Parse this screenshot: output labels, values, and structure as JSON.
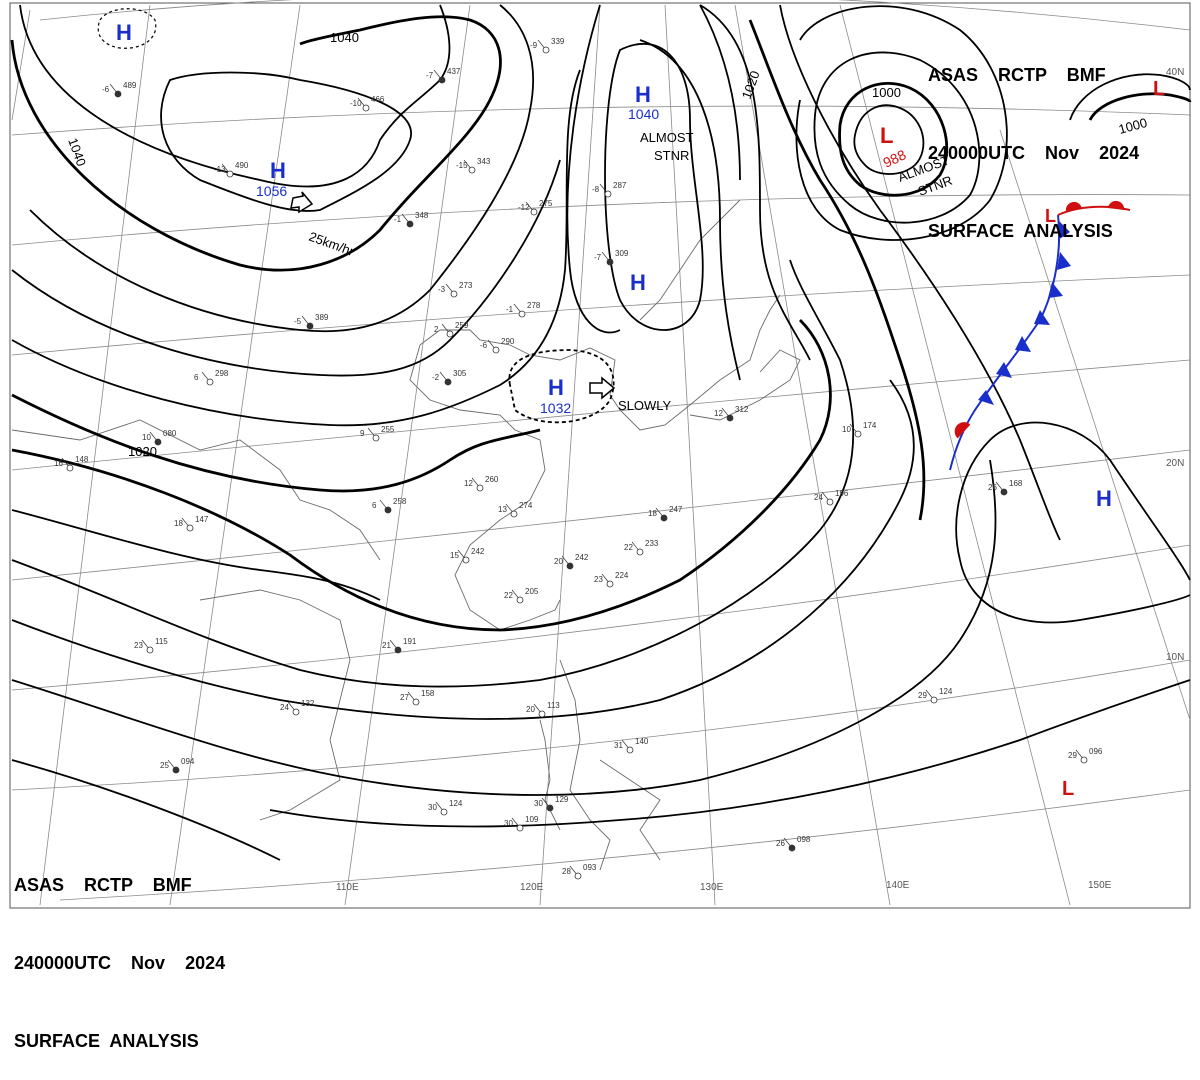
{
  "header_top": {
    "line1": "ASAS    RCTP    BMF",
    "line2": "240000UTC    Nov    2024",
    "line3": "SURFACE  ANALYSIS"
  },
  "header_bottom": {
    "line1": "ASAS    RCTP    BMF",
    "line2": "240000UTC    Nov    2024",
    "line3": "SURFACE  ANALYSIS"
  },
  "longitudes": [
    "110E",
    "120E",
    "130E",
    "140E",
    "150E"
  ],
  "latitudes": [
    "40N",
    "20N",
    "10N"
  ],
  "isobar_labels": [
    "1040",
    "1040",
    "1020",
    "1020",
    "1000",
    "1000"
  ],
  "pressure_centers": [
    {
      "type": "H",
      "value": "",
      "color": "#1a2ecc"
    },
    {
      "type": "H",
      "value": "1056",
      "color": "#1a2ecc"
    },
    {
      "type": "H",
      "value": "1040",
      "color": "#1a2ecc"
    },
    {
      "type": "H",
      "value": "",
      "color": "#1a2ecc"
    },
    {
      "type": "H",
      "value": "1032",
      "color": "#1a2ecc"
    },
    {
      "type": "H",
      "value": "",
      "color": "#1a2ecc"
    },
    {
      "type": "L",
      "value": "988",
      "color": "#d01010"
    },
    {
      "type": "L",
      "value": "",
      "color": "#d01010"
    },
    {
      "type": "L",
      "value": "",
      "color": "#d01010"
    },
    {
      "type": "L",
      "value": "",
      "color": "#d01010"
    }
  ],
  "motion_notes": [
    "25km/hr",
    "ALMOST",
    "STNR",
    "SLOWLY",
    "ALMOST",
    "STNR"
  ],
  "stations": [
    {
      "t": "-6",
      "p": "489"
    },
    {
      "t": "-13",
      "p": "490"
    },
    {
      "t": "-10",
      "p": "466"
    },
    {
      "t": "-7",
      "p": "437"
    },
    {
      "t": "-9",
      "p": "339"
    },
    {
      "t": "-15",
      "p": "343"
    },
    {
      "t": "-1",
      "p": "348"
    },
    {
      "t": "-12",
      "p": "275"
    },
    {
      "t": "-8",
      "p": "287"
    },
    {
      "t": "-7",
      "p": "309"
    },
    {
      "t": "-3",
      "p": "273"
    },
    {
      "t": "-1",
      "p": "278"
    },
    {
      "t": "-5",
      "p": "389"
    },
    {
      "t": "2",
      "p": "259"
    },
    {
      "t": "-6",
      "p": "290"
    },
    {
      "t": "-2",
      "p": "305"
    },
    {
      "t": "6",
      "p": "298"
    },
    {
      "t": "9",
      "p": "255"
    },
    {
      "t": "10",
      "p": "080"
    },
    {
      "t": "16",
      "p": "148"
    },
    {
      "t": "12",
      "p": "260"
    },
    {
      "t": "6",
      "p": "258"
    },
    {
      "t": "13",
      "p": "274"
    },
    {
      "t": "18",
      "p": "147"
    },
    {
      "t": "18",
      "p": "247"
    },
    {
      "t": "22",
      "p": "233"
    },
    {
      "t": "15",
      "p": "242"
    },
    {
      "t": "20",
      "p": "242"
    },
    {
      "t": "22",
      "p": "205"
    },
    {
      "t": "23",
      "p": "115"
    },
    {
      "t": "21",
      "p": "191"
    },
    {
      "t": "24",
      "p": "132"
    },
    {
      "t": "27",
      "p": "158"
    },
    {
      "t": "25",
      "p": "094"
    },
    {
      "t": "30",
      "p": "124"
    },
    {
      "t": "30",
      "p": "109"
    },
    {
      "t": "30",
      "p": "129"
    },
    {
      "t": "31",
      "p": "140"
    },
    {
      "t": "28",
      "p": "093"
    },
    {
      "t": "26",
      "p": "098"
    },
    {
      "t": "29",
      "p": "124"
    },
    {
      "t": "29",
      "p": "096"
    },
    {
      "t": "26",
      "p": "168"
    },
    {
      "t": "24",
      "p": "196"
    },
    {
      "t": "10",
      "p": "174"
    },
    {
      "t": "12",
      "p": "312"
    },
    {
      "t": "20",
      "p": "113"
    },
    {
      "t": "23",
      "p": "224"
    }
  ],
  "colors": {
    "isobar": "#000000",
    "grid": "#8a8a8a",
    "coast": "#6a6a6a",
    "high": "#1a2ecc",
    "low": "#d01010",
    "cold_front": "#1a2ecc",
    "warm_front": "#d01010"
  }
}
